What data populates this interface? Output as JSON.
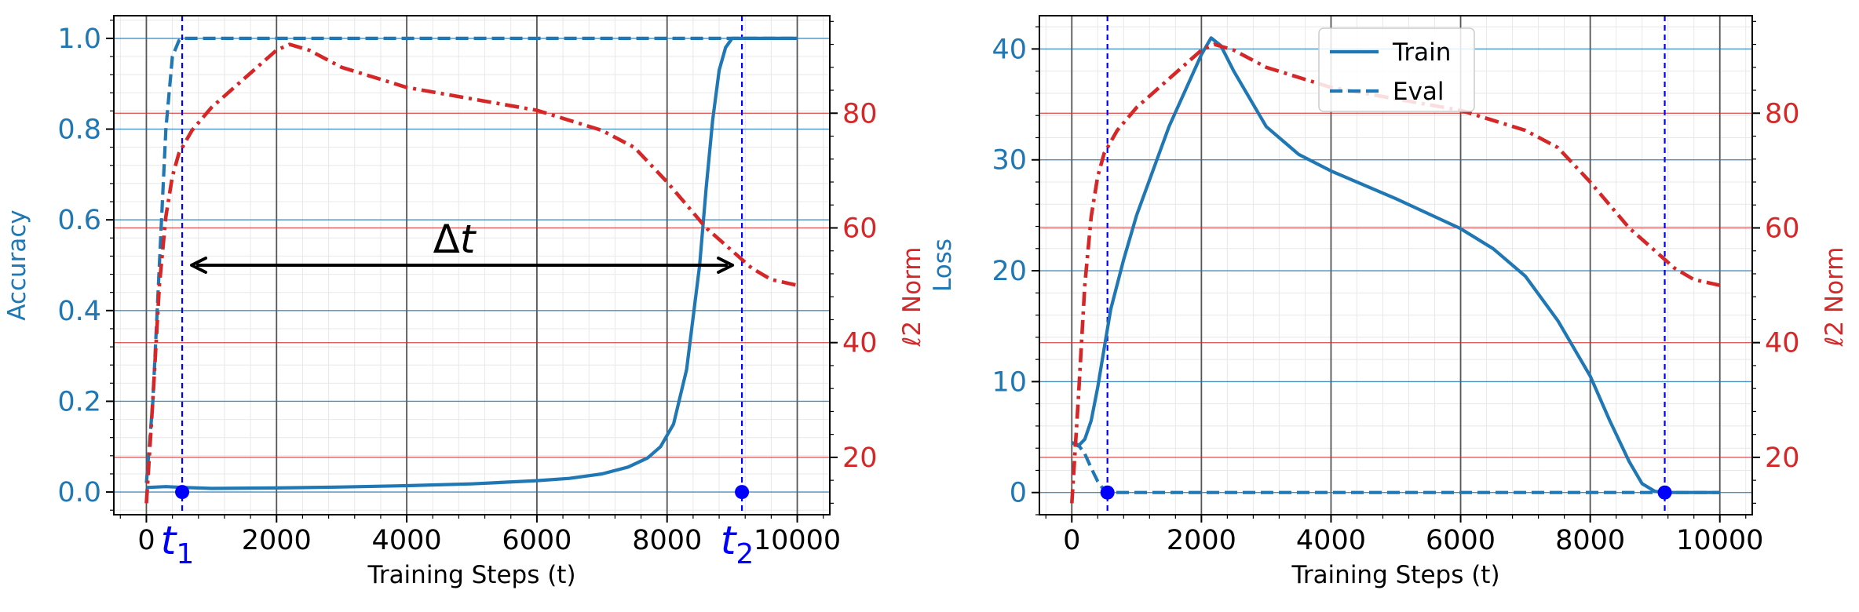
{
  "colors": {
    "blue": "#1f77b4",
    "red": "#d62728",
    "marker": "#0000ff",
    "black": "#000000",
    "grid_minor": "#e8e8e8",
    "grid_major_x": "#555555"
  },
  "chart_data": [
    {
      "type": "line",
      "title": "",
      "xlabel": "Training Steps (t)",
      "ylabel": "Accuracy",
      "y2label": "ℓ2 Norm",
      "xlim": [
        -500,
        10500
      ],
      "ylim": [
        -0.05,
        1.05
      ],
      "y2lim": [
        10,
        97
      ],
      "x_ticks": [
        0,
        2000,
        4000,
        6000,
        8000,
        10000
      ],
      "x_tick_labels": [
        "0",
        "2000",
        "4000",
        "6000",
        "8000",
        "10000"
      ],
      "y_ticks": [
        0.0,
        0.2,
        0.4,
        0.6,
        0.8,
        1.0
      ],
      "y_tick_labels": [
        "0.0",
        "0.2",
        "0.4",
        "0.6",
        "0.8",
        "1.0"
      ],
      "y2_ticks": [
        20,
        40,
        60,
        80
      ],
      "y2_tick_labels": [
        "20",
        "40",
        "60",
        "80"
      ],
      "grid": true,
      "legend": null,
      "series": [
        {
          "axis": "left",
          "style": "solid",
          "color": "#1f77b4",
          "x": [
            0,
            300,
            600,
            1000,
            2000,
            3000,
            4000,
            5000,
            6000,
            6500,
            7000,
            7400,
            7700,
            7900,
            8100,
            8300,
            8500,
            8600,
            8700,
            8800,
            8900,
            9000,
            9200,
            9500,
            10000
          ],
          "y": [
            0.01,
            0.012,
            0.01,
            0.008,
            0.009,
            0.011,
            0.014,
            0.018,
            0.025,
            0.03,
            0.04,
            0.055,
            0.075,
            0.1,
            0.15,
            0.27,
            0.5,
            0.67,
            0.82,
            0.93,
            0.98,
            1.0,
            1.0,
            1.0,
            1.0
          ]
        },
        {
          "axis": "left",
          "style": "dashed",
          "color": "#1f77b4",
          "x": [
            0,
            100,
            200,
            300,
            400,
            500,
            550,
            700,
            1000,
            2000,
            4000,
            6000,
            8000,
            9000,
            10000
          ],
          "y": [
            0.02,
            0.2,
            0.5,
            0.8,
            0.96,
            0.995,
            1.0,
            1.0,
            1.0,
            1.0,
            1.0,
            1.0,
            1.0,
            1.0,
            1.0
          ]
        },
        {
          "axis": "right",
          "style": "dashdot",
          "color": "#d62728",
          "x": [
            0,
            100,
            200,
            300,
            400,
            500,
            700,
            1000,
            1500,
            2000,
            2200,
            2500,
            3000,
            4000,
            5000,
            6000,
            7000,
            7500,
            8000,
            8300,
            8600,
            9000,
            9300,
            9600,
            10000
          ],
          "y": [
            12,
            30,
            50,
            62,
            69,
            73,
            77,
            81,
            86,
            91,
            92,
            91,
            88,
            84.5,
            82.5,
            80.5,
            77,
            74,
            68,
            64,
            60,
            56,
            53,
            51,
            50
          ]
        }
      ],
      "markers": [
        {
          "x": 550,
          "y": 0.0,
          "label": "t1"
        },
        {
          "x": 9150,
          "y": 0.0,
          "label": "t2"
        }
      ],
      "vlines": [
        550,
        9150
      ],
      "annotation": {
        "text": "Δt",
        "x_from": 550,
        "x_to": 9150,
        "y": 0.5
      }
    },
    {
      "type": "line",
      "title": "",
      "xlabel": "Training Steps (t)",
      "ylabel": "Loss",
      "y2label": "ℓ2 Norm",
      "xlim": [
        -500,
        10500
      ],
      "ylim": [
        -2,
        43
      ],
      "y2lim": [
        10,
        97
      ],
      "x_ticks": [
        0,
        2000,
        4000,
        6000,
        8000,
        10000
      ],
      "x_tick_labels": [
        "0",
        "2000",
        "4000",
        "6000",
        "8000",
        "10000"
      ],
      "y_ticks": [
        0,
        10,
        20,
        30,
        40
      ],
      "y_tick_labels": [
        "0",
        "10",
        "20",
        "30",
        "40"
      ],
      "y2_ticks": [
        20,
        40,
        60,
        80
      ],
      "y2_tick_labels": [
        "20",
        "40",
        "60",
        "80"
      ],
      "grid": true,
      "legend": {
        "position": "top-center",
        "entries": [
          "Train",
          "Eval"
        ]
      },
      "series": [
        {
          "name": "Train",
          "axis": "left",
          "style": "solid",
          "color": "#1f77b4",
          "x": [
            0,
            100,
            200,
            300,
            400,
            500,
            600,
            800,
            1000,
            1500,
            2000,
            2150,
            2300,
            2500,
            3000,
            3500,
            4000,
            5000,
            6000,
            6500,
            7000,
            7500,
            8000,
            8300,
            8600,
            8800,
            9000,
            9200,
            10000
          ],
          "y": [
            4.5,
            4.2,
            4.8,
            6.5,
            9.5,
            13.0,
            16.5,
            21.0,
            25.0,
            33.0,
            39.5,
            41.0,
            40.3,
            38.0,
            33.0,
            30.5,
            29.0,
            26.5,
            23.8,
            22.0,
            19.5,
            15.5,
            10.5,
            6.5,
            2.8,
            0.8,
            0.1,
            0.0,
            0.0
          ]
        },
        {
          "name": "Eval",
          "axis": "left",
          "style": "dashed",
          "color": "#1f77b4",
          "x": [
            0,
            100,
            200,
            300,
            400,
            500,
            550,
            700,
            1000,
            2000,
            4000,
            6000,
            8000,
            10000
          ],
          "y": [
            4.5,
            4.3,
            3.5,
            2.2,
            1.0,
            0.2,
            0.0,
            0.0,
            0.0,
            0.0,
            0.0,
            0.0,
            0.0,
            0.0
          ]
        },
        {
          "axis": "right",
          "style": "dashdot",
          "color": "#d62728",
          "x": [
            0,
            100,
            200,
            300,
            400,
            500,
            700,
            1000,
            1500,
            2000,
            2200,
            2500,
            3000,
            4000,
            5000,
            6000,
            7000,
            7500,
            8000,
            8300,
            8600,
            9000,
            9300,
            9600,
            10000
          ],
          "y": [
            12,
            30,
            50,
            62,
            69,
            73,
            77,
            81,
            86,
            91,
            92,
            91,
            88,
            84.5,
            82.5,
            80.5,
            77,
            74,
            68,
            64,
            60,
            56,
            53,
            51,
            50
          ]
        }
      ],
      "markers": [
        {
          "x": 550,
          "y": 0.0,
          "label": ""
        },
        {
          "x": 9150,
          "y": 0.0,
          "label": ""
        }
      ],
      "vlines": [
        550,
        9150
      ],
      "annotation": null
    }
  ]
}
